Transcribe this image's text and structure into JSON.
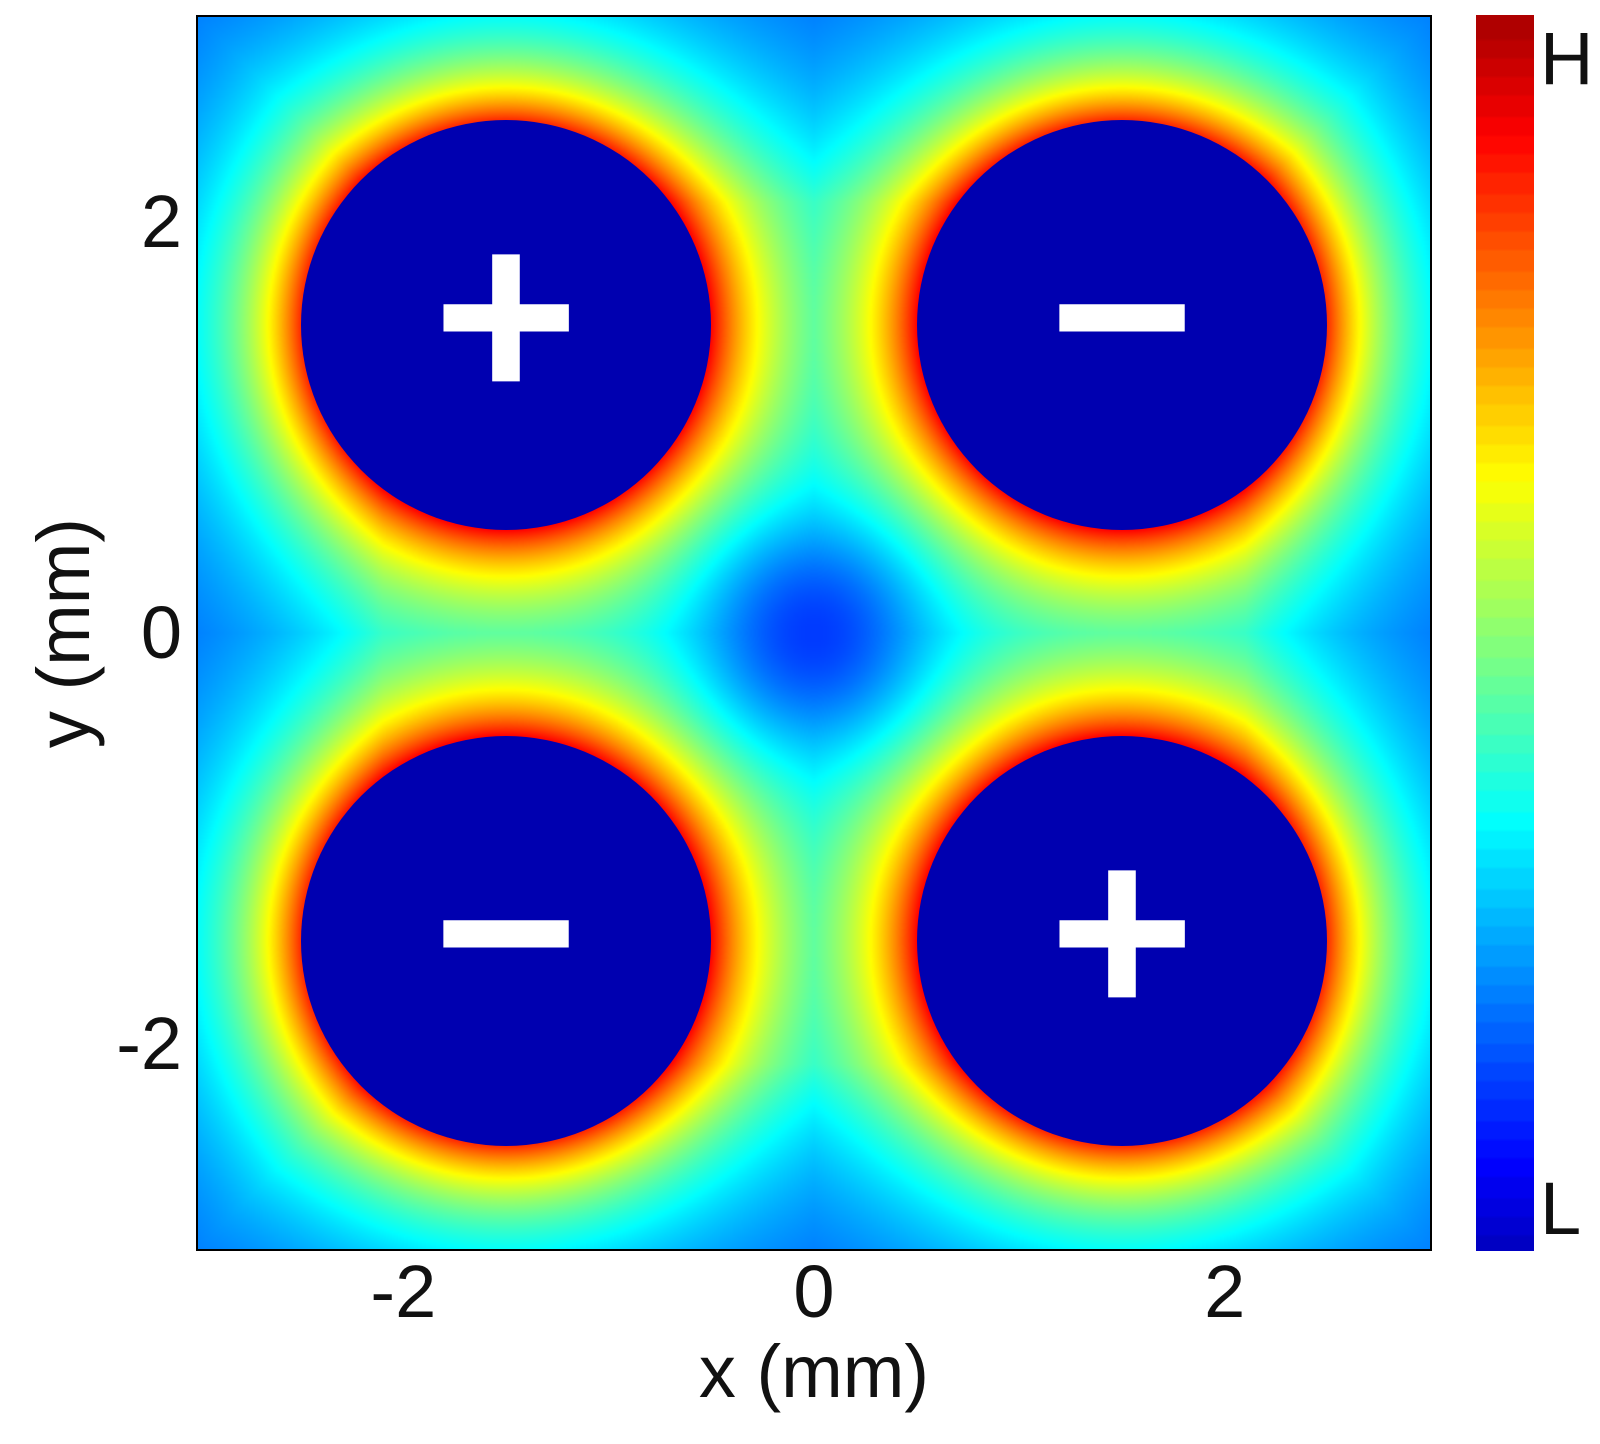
{
  "chart_data": {
    "type": "heatmap",
    "title": "",
    "xlabel": "x (mm)",
    "ylabel": "y (mm)",
    "xlim": [
      -3.0,
      3.0
    ],
    "ylim": [
      -3.0,
      3.0
    ],
    "x_ticks": [
      {
        "value": -2,
        "label": "-2"
      },
      {
        "value": 0,
        "label": "0"
      },
      {
        "value": 2,
        "label": "2"
      }
    ],
    "y_ticks": [
      {
        "value": 2,
        "label": "2"
      },
      {
        "value": 0,
        "label": "0"
      },
      {
        "value": -2,
        "label": "-2"
      }
    ],
    "grid": false,
    "colormap": "jet",
    "colorbar": {
      "high_label": "H",
      "low_label": "L",
      "colors": [
        "#00007f",
        "#0000ff",
        "#0080ff",
        "#00ffff",
        "#80ff80",
        "#ffff00",
        "#ff8000",
        "#ff0000",
        "#7f0000"
      ]
    },
    "electrodes": [
      {
        "x": -1.5,
        "y": 1.5,
        "radius": 1.0,
        "sign": "+",
        "fill": "#0000b0"
      },
      {
        "x": 1.5,
        "y": 1.5,
        "radius": 1.0,
        "sign": "−",
        "fill": "#0000b0"
      },
      {
        "x": -1.5,
        "y": -1.5,
        "radius": 1.0,
        "sign": "−",
        "fill": "#0000b0"
      },
      {
        "x": 1.5,
        "y": -1.5,
        "radius": 1.0,
        "sign": "+",
        "fill": "#0000b0"
      }
    ],
    "field_minimum": {
      "x": 0,
      "y": 0
    }
  }
}
